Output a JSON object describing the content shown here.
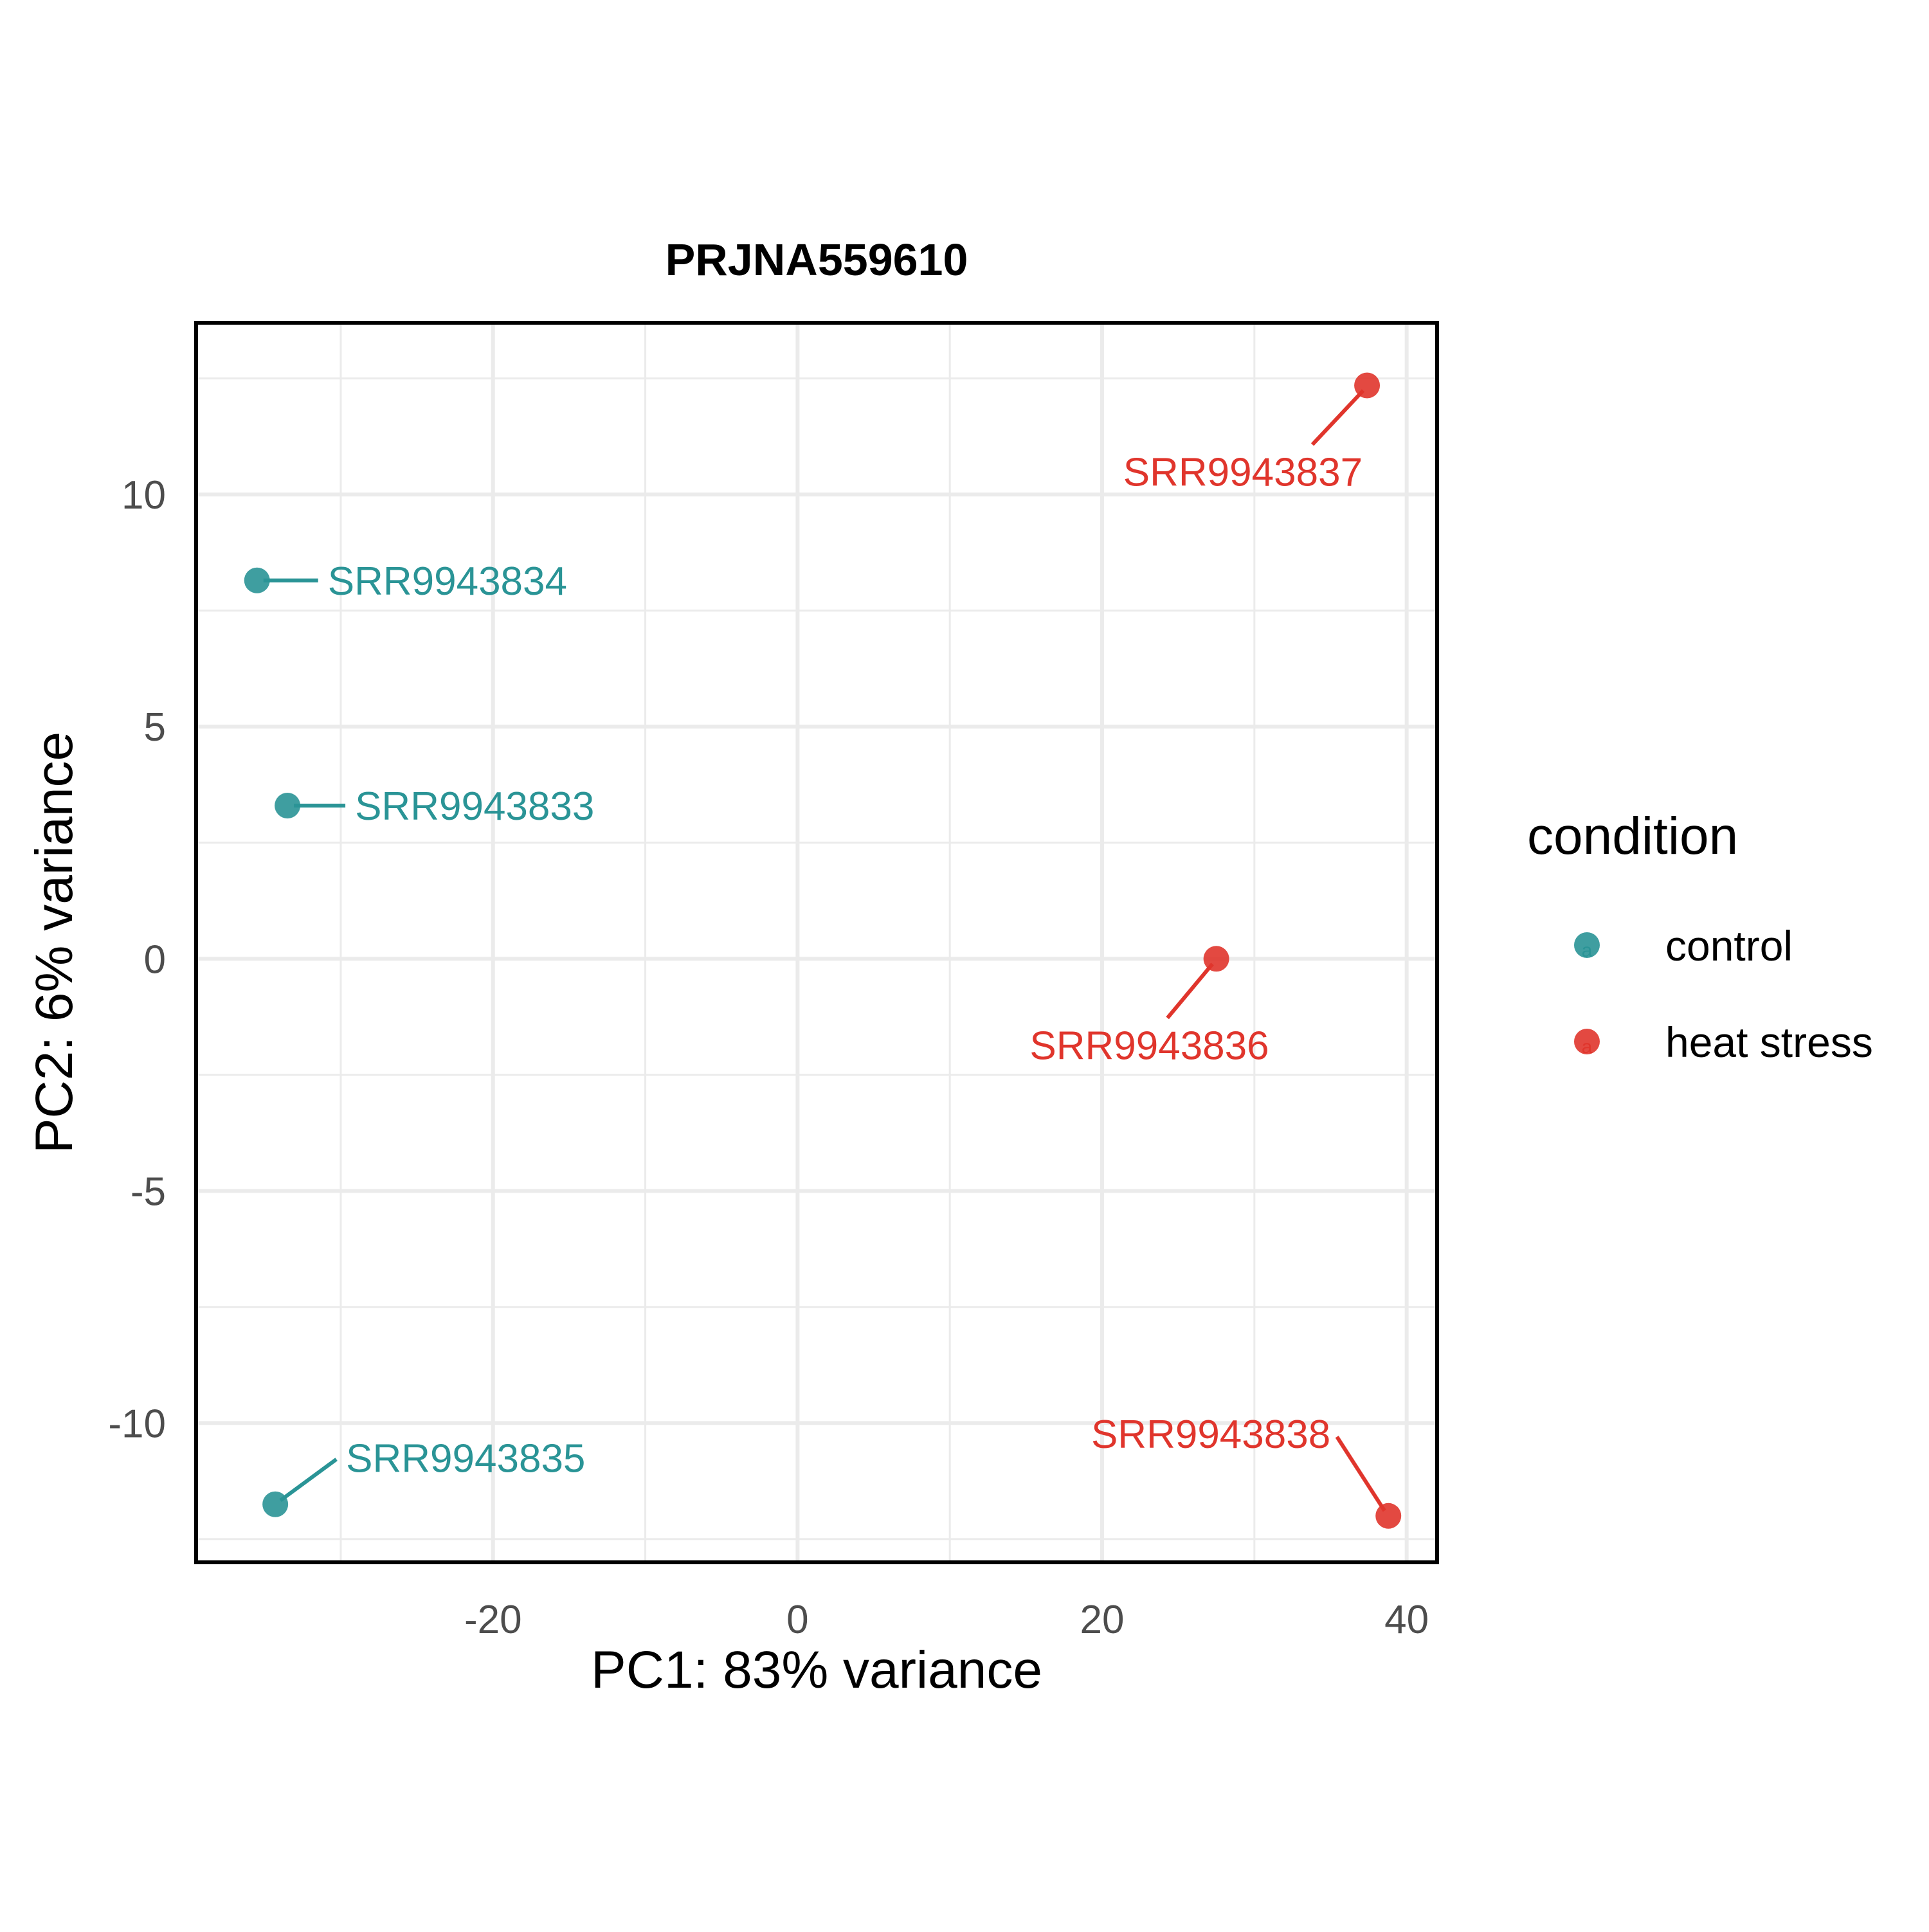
{
  "chart_data": {
    "type": "scatter",
    "title": "PRJNA559610",
    "xlabel": "PC1: 83% variance",
    "ylabel": "PC2: 6% variance",
    "xlim": [
      -39.5,
      42
    ],
    "ylim": [
      -13,
      13.7
    ],
    "xticks": [
      -20,
      0,
      20,
      40
    ],
    "yticks": [
      -10,
      -5,
      0,
      5,
      10
    ],
    "grid": true,
    "legend": {
      "title": "condition",
      "placement": "right",
      "entries": [
        {
          "label": "control",
          "color": "#2a9496"
        },
        {
          "label": "heat stress",
          "color": "#e0352c"
        }
      ]
    },
    "series": [
      {
        "name": "control",
        "color": "#2a9496",
        "points": [
          {
            "label": "SRR9943834",
            "x": -35.5,
            "y": 8.15
          },
          {
            "label": "SRR9943833",
            "x": -33.5,
            "y": 3.3
          },
          {
            "label": "SRR9943835",
            "x": -34.3,
            "y": -11.75
          }
        ]
      },
      {
        "name": "heat stress",
        "color": "#e0352c",
        "points": [
          {
            "label": "SRR9943837",
            "x": 37.4,
            "y": 12.35
          },
          {
            "label": "SRR9943836",
            "x": 27.5,
            "y": 0.0
          },
          {
            "label": "SRR9943838",
            "x": 38.8,
            "y": -12.0
          }
        ]
      }
    ]
  }
}
